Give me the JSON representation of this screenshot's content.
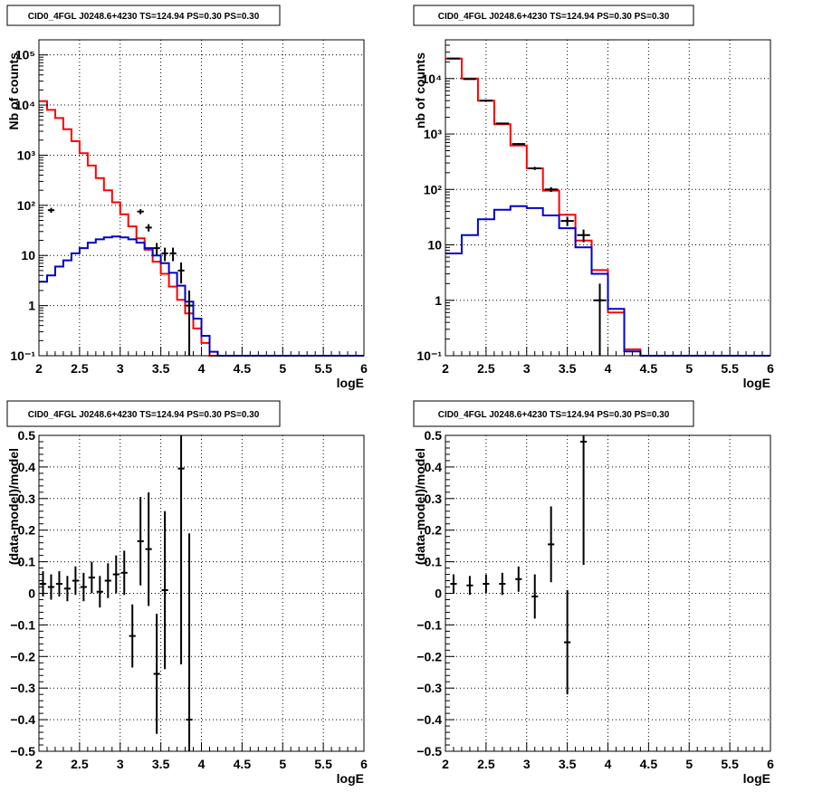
{
  "colors": {
    "model": "#ff0000",
    "component": "#0000cc",
    "data": "#000000",
    "grid": "#000000"
  },
  "chart_data": [
    {
      "id": "top-left",
      "type": "line",
      "title": "CID0_4FGL J0248.6+4230 TS=124.94 PS=0.30 PS=0.30",
      "xlabel": "logE",
      "ylabel": "Nb of counts",
      "log_y": true,
      "xlim": [
        2,
        6
      ],
      "ylim": [
        0.1,
        200000
      ],
      "grid": true,
      "x_ticks": [
        "2",
        "2.5",
        "3",
        "3.5",
        "4",
        "4.5",
        "5",
        "5.5",
        "6"
      ],
      "y_ticks": [
        "10⁻¹",
        "1",
        "10",
        "10²",
        "10³",
        "10⁴",
        "10⁵"
      ],
      "bin_edges": [
        2.0,
        2.1,
        2.2,
        2.3,
        2.4,
        2.5,
        2.6,
        2.7,
        2.8,
        2.9,
        3.0,
        3.1,
        3.2,
        3.3,
        3.4,
        3.5,
        3.6,
        3.7,
        3.8,
        3.9,
        4.0,
        4.1,
        4.2,
        4.3,
        4.4,
        4.5,
        4.6,
        4.7,
        4.8,
        4.9,
        5.0,
        5.1,
        5.2,
        5.3,
        5.4,
        5.5,
        5.6,
        5.7,
        5.8,
        5.9,
        6.0
      ],
      "series": [
        {
          "role": "model",
          "values": [
            12000,
            8000,
            5500,
            3300,
            1900,
            1100,
            620,
            350,
            200,
            115,
            66,
            38,
            22,
            13,
            7.5,
            4.3,
            2.4,
            1.3,
            0.7,
            0.35,
            0.18,
            0.1,
            0.1,
            0.1,
            0.1,
            0.1,
            0.1,
            0.1,
            0.1,
            0.1,
            0.1,
            0.1,
            0.1,
            0.1,
            0.1,
            0.1,
            0.1,
            0.1,
            0.1,
            0.1
          ]
        },
        {
          "role": "component",
          "values": [
            3,
            4,
            6,
            8,
            11,
            14,
            18,
            21,
            23,
            24,
            23,
            21,
            18,
            14,
            10,
            7,
            4.5,
            2.5,
            1.2,
            0.55,
            0.25,
            0.12,
            0.1,
            0.1,
            0.1,
            0.1,
            0.1,
            0.1,
            0.1,
            0.1,
            0.1,
            0.1,
            0.1,
            0.1,
            0.1,
            0.1,
            0.1,
            0.1,
            0.1,
            0.1
          ]
        }
      ],
      "points": [
        {
          "x": 2.15,
          "y": 80
        },
        {
          "x": 3.25,
          "y": 75
        },
        {
          "x": 3.35,
          "y": 36
        },
        {
          "x": 3.45,
          "y": 14
        },
        {
          "x": 3.55,
          "y": 11
        },
        {
          "x": 3.65,
          "y": 11
        },
        {
          "x": 3.75,
          "y": 5
        },
        {
          "x": 3.85,
          "y": 1
        }
      ]
    },
    {
      "id": "top-right",
      "type": "line",
      "title": "CID0_4FGL J0248.6+4230 TS=124.94 PS=0.30 PS=0.30",
      "xlabel": "logE",
      "ylabel": "nb of counts",
      "log_y": true,
      "xlim": [
        2,
        6
      ],
      "ylim": [
        0.1,
        50000
      ],
      "grid": true,
      "x_ticks": [
        "2",
        "2.5",
        "3",
        "3.5",
        "4",
        "4.5",
        "5",
        "5.5",
        "6"
      ],
      "y_ticks": [
        "10⁻¹",
        "1",
        "10",
        "10²",
        "10³",
        "10⁴"
      ],
      "bin_edges": [
        2.0,
        2.2,
        2.4,
        2.6,
        2.8,
        3.0,
        3.2,
        3.4,
        3.6,
        3.8,
        4.0,
        4.2,
        4.4,
        4.6,
        4.8,
        5.0,
        5.2,
        5.4,
        5.6,
        5.8,
        6.0
      ],
      "series": [
        {
          "role": "model",
          "values": [
            23000,
            10000,
            4000,
            1500,
            620,
            240,
            95,
            35,
            12,
            3.5,
            0.6,
            0.13,
            0.1,
            0.1,
            0.1,
            0.1,
            0.1,
            0.1,
            0.1,
            0.1
          ]
        },
        {
          "role": "component",
          "values": [
            7,
            15,
            29,
            43,
            50,
            46,
            34,
            20,
            9,
            3,
            0.7,
            0.12,
            0.1,
            0.1,
            0.1,
            0.1,
            0.1,
            0.1,
            0.1,
            0.1
          ]
        }
      ],
      "points": [
        {
          "x": 2.1,
          "y": 23000
        },
        {
          "x": 2.3,
          "y": 9800
        },
        {
          "x": 2.5,
          "y": 4000
        },
        {
          "x": 2.7,
          "y": 1550
        },
        {
          "x": 2.9,
          "y": 660
        },
        {
          "x": 3.1,
          "y": 240
        },
        {
          "x": 3.3,
          "y": 100
        },
        {
          "x": 3.5,
          "y": 27
        },
        {
          "x": 3.7,
          "y": 15
        },
        {
          "x": 3.9,
          "y": 1
        }
      ]
    },
    {
      "id": "bottom-left",
      "type": "scatter",
      "title": "CID0_4FGL J0248.6+4230 TS=124.94 PS=0.30 PS=0.30",
      "xlabel": "logE",
      "ylabel": "(data-model)/model",
      "log_y": false,
      "xlim": [
        2,
        6
      ],
      "ylim": [
        -0.5,
        0.5
      ],
      "grid": true,
      "x_ticks": [
        "2",
        "2.5",
        "3",
        "3.5",
        "4",
        "4.5",
        "5",
        "5.5",
        "6"
      ],
      "y_ticks": [
        "−0.5",
        "−0.4",
        "−0.3",
        "−0.2",
        "−0.1",
        "0",
        "0.1",
        "0.2",
        "0.3",
        "0.4",
        "0.5"
      ],
      "points": [
        {
          "x": 2.05,
          "y": 0.03,
          "err": 0.04
        },
        {
          "x": 2.15,
          "y": 0.02,
          "err": 0.04
        },
        {
          "x": 2.25,
          "y": 0.03,
          "err": 0.04
        },
        {
          "x": 2.35,
          "y": 0.015,
          "err": 0.04
        },
        {
          "x": 2.45,
          "y": 0.04,
          "err": 0.045
        },
        {
          "x": 2.55,
          "y": 0.02,
          "err": 0.045
        },
        {
          "x": 2.65,
          "y": 0.05,
          "err": 0.05
        },
        {
          "x": 2.75,
          "y": 0.005,
          "err": 0.05
        },
        {
          "x": 2.85,
          "y": 0.04,
          "err": 0.055
        },
        {
          "x": 2.95,
          "y": 0.06,
          "err": 0.06
        },
        {
          "x": 3.05,
          "y": 0.065,
          "err": 0.07
        },
        {
          "x": 3.15,
          "y": -0.135,
          "err": 0.1
        },
        {
          "x": 3.25,
          "y": 0.165,
          "err": 0.14
        },
        {
          "x": 3.35,
          "y": 0.14,
          "err": 0.18
        },
        {
          "x": 3.45,
          "y": -0.255,
          "err": 0.19
        },
        {
          "x": 3.55,
          "y": 0.01,
          "err": 0.25
        },
        {
          "x": 3.75,
          "y": 0.395,
          "err": 0.62
        },
        {
          "x": 3.85,
          "y": -0.4,
          "err": 0.59
        }
      ]
    },
    {
      "id": "bottom-right",
      "type": "scatter",
      "title": "CID0_4FGL J0248.6+4230 TS=124.94 PS=0.30 PS=0.30",
      "xlabel": "logE",
      "ylabel": "(data-model)/model",
      "log_y": false,
      "xlim": [
        2,
        6
      ],
      "ylim": [
        -0.5,
        0.5
      ],
      "grid": true,
      "x_ticks": [
        "2",
        "2.5",
        "3",
        "3.5",
        "4",
        "4.5",
        "5",
        "5.5",
        "6"
      ],
      "y_ticks": [
        "−0.5",
        "−0.4",
        "−0.3",
        "−0.2",
        "−0.1",
        "0",
        "0.1",
        "0.2",
        "0.3",
        "0.4",
        "0.5"
      ],
      "points": [
        {
          "x": 2.1,
          "y": 0.03,
          "err": 0.03
        },
        {
          "x": 2.3,
          "y": 0.025,
          "err": 0.03
        },
        {
          "x": 2.5,
          "y": 0.03,
          "err": 0.03
        },
        {
          "x": 2.7,
          "y": 0.03,
          "err": 0.035
        },
        {
          "x": 2.9,
          "y": 0.045,
          "err": 0.04
        },
        {
          "x": 3.1,
          "y": -0.01,
          "err": 0.07
        },
        {
          "x": 3.3,
          "y": 0.155,
          "err": 0.12
        },
        {
          "x": 3.5,
          "y": -0.155,
          "err": 0.165
        },
        {
          "x": 3.7,
          "y": 0.48,
          "err": 0.39
        }
      ]
    }
  ]
}
